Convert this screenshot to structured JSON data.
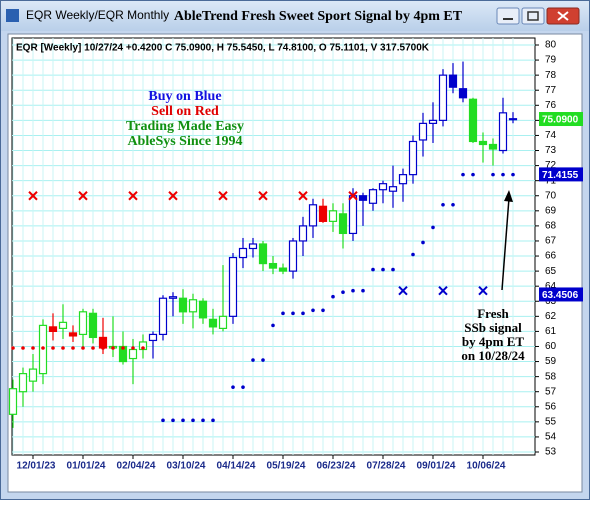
{
  "window_title": "EQR Weekly/EQR Monthly",
  "chart_data": {
    "type": "candlestick",
    "title": "AbleTrend Fresh Sweet Sport Signal by 4pm ET",
    "info": "EQR [Weekly] 10/27/24 +0.4200 C 75.0900, H 75.5450, L 74.8100, O 75.1101, V 317.5700K",
    "annotations": [
      {
        "text": "Buy on Blue",
        "color": "#1010e0"
      },
      {
        "text": "Sell on Red",
        "color": "#e00000"
      },
      {
        "text": "Trading Made Easy",
        "color": "#109010"
      },
      {
        "text": "AbleSys Since 1994",
        "color": "#109010"
      }
    ],
    "signal_note": [
      "Fresh",
      "SSb signal",
      "by 4pm ET",
      "on 10/28/24"
    ],
    "categories": [
      null,
      null,
      "12/01/23",
      null,
      null,
      null,
      null,
      "01/01/24",
      null,
      null,
      null,
      null,
      "02/04/24",
      null,
      null,
      null,
      null,
      "03/10/24",
      null,
      null,
      null,
      null,
      "04/14/24",
      null,
      null,
      null,
      null,
      "05/19/24",
      null,
      null,
      null,
      null,
      "06/23/24",
      null,
      null,
      null,
      null,
      "07/28/24",
      null,
      null,
      null,
      null,
      "09/01/24",
      null,
      null,
      null,
      null,
      "10/06/24",
      null,
      null,
      null
    ],
    "open": [
      55.5,
      57.0,
      57.7,
      58.2,
      61.3,
      61.2,
      60.9,
      60.8,
      62.2,
      60.6,
      59.9,
      60.0,
      59.2,
      59.8,
      60.4,
      60.8,
      63.2,
      63.2,
      62.3,
      63.0,
      61.8,
      61.2,
      62.0,
      65.9,
      66.5,
      66.8,
      65.5,
      65.2,
      65.0,
      67.0,
      68.0,
      69.3,
      68.3,
      68.8,
      67.5,
      70.0,
      69.5,
      70.4,
      70.3,
      70.8,
      71.4,
      73.7,
      74.8,
      75.0,
      78.0,
      77.1,
      76.4,
      73.6,
      73.4,
      73.0,
      75.1101
    ],
    "high": [
      57.8,
      58.6,
      59.5,
      61.8,
      62.2,
      62.8,
      61.4,
      62.5,
      62.5,
      61.9,
      62.0,
      61.0,
      60.5,
      60.8,
      61.0,
      63.4,
      63.6,
      63.8,
      63.5,
      63.2,
      62.5,
      65.4,
      66.2,
      67.2,
      67.2,
      67.0,
      66.0,
      65.5,
      67.2,
      68.6,
      69.8,
      69.8,
      69.5,
      69.5,
      70.5,
      70.2,
      70.5,
      71.0,
      72.0,
      71.8,
      74.0,
      75.5,
      76.2,
      78.4,
      78.8,
      78.9,
      76.5,
      74.2,
      73.8,
      76.5,
      75.545
    ],
    "low": [
      54.6,
      56.0,
      57.0,
      57.5,
      60.4,
      60.5,
      60.3,
      60.0,
      60.2,
      59.5,
      59.3,
      58.8,
      57.5,
      59.2,
      59.2,
      60.4,
      62.0,
      61.5,
      61.2,
      61.5,
      60.8,
      61.0,
      61.5,
      65.2,
      65.9,
      65.0,
      64.8,
      64.8,
      64.5,
      66.0,
      67.2,
      68.2,
      67.6,
      66.5,
      67.0,
      68.0,
      69.0,
      69.5,
      69.2,
      69.6,
      70.8,
      72.6,
      73.5,
      74.6,
      76.8,
      76.2,
      73.5,
      72.2,
      72.0,
      72.8,
      74.81
    ],
    "close": [
      57.2,
      58.2,
      58.5,
      61.4,
      61.0,
      61.6,
      60.7,
      62.3,
      60.6,
      59.9,
      60.0,
      59.0,
      59.8,
      60.3,
      60.8,
      63.2,
      63.3,
      62.3,
      63.1,
      61.9,
      61.3,
      62.0,
      65.9,
      66.5,
      66.8,
      65.5,
      65.2,
      65.0,
      67.0,
      68.0,
      69.4,
      68.3,
      69.0,
      67.5,
      70.0,
      69.7,
      70.4,
      70.8,
      70.6,
      71.4,
      73.6,
      74.8,
      75.0,
      78.0,
      77.2,
      76.5,
      73.6,
      73.4,
      73.1,
      75.5,
      75.09
    ],
    "bar_colors": [
      "#22dd22",
      "#22dd22",
      "#22dd22",
      "#22dd22",
      "#ee0000",
      "#22dd22",
      "#ee0000",
      "#22dd22",
      "#22dd22",
      "#ee0000",
      "#22dd22",
      "#22dd22",
      "#22dd22",
      "#22dd22",
      "#0000cc",
      "#0000cc",
      "#0000cc",
      "#22dd22",
      "#22dd22",
      "#22dd22",
      "#22dd22",
      "#22dd22",
      "#0000cc",
      "#0000cc",
      "#0000cc",
      "#22dd22",
      "#22dd22",
      "#22dd22",
      "#0000cc",
      "#0000cc",
      "#0000cc",
      "#ee0000",
      "#22dd22",
      "#22dd22",
      "#0000cc",
      "#0000cc",
      "#0000cc",
      "#0000cc",
      "#0000cc",
      "#0000cc",
      "#0000cc",
      "#0000cc",
      "#0000cc",
      "#0000cc",
      "#0000cc",
      "#0000cc",
      "#22dd22",
      "#22dd22",
      "#22dd22",
      "#0000cc",
      "#0000cc"
    ],
    "stops": [
      {
        "color": "#ee0000",
        "values": [
          59.9,
          59.9,
          59.9,
          59.9,
          59.9,
          59.9,
          59.9,
          59.9,
          59.9,
          59.9,
          59.9,
          59.9,
          59.9,
          59.9,
          null,
          null,
          null,
          null,
          null,
          null,
          null,
          null,
          null,
          null,
          null,
          null,
          null,
          null,
          null,
          null,
          null,
          null,
          null,
          null,
          null,
          null,
          null,
          null,
          null,
          null,
          null,
          null,
          null,
          null,
          null,
          null,
          null,
          null,
          null,
          null,
          null
        ]
      },
      {
        "color": "#0000cc",
        "values": [
          null,
          null,
          null,
          null,
          null,
          null,
          null,
          null,
          null,
          null,
          null,
          null,
          null,
          null,
          null,
          55.1,
          55.1,
          55.1,
          55.1,
          55.1,
          55.1,
          null,
          57.3,
          57.3,
          59.1,
          59.1,
          61.4,
          62.2,
          62.2,
          62.2,
          62.4,
          62.4,
          63.3,
          63.6,
          63.7,
          63.7,
          65.1,
          65.1,
          65.1,
          null,
          66.1,
          66.9,
          67.9,
          69.4,
          69.4,
          71.4,
          71.4,
          null,
          71.4,
          71.4,
          71.4
        ]
      }
    ],
    "signals": [
      {
        "color": "#ee0000",
        "values": [
          null,
          null,
          70,
          null,
          null,
          null,
          null,
          70,
          null,
          null,
          null,
          null,
          70,
          null,
          null,
          null,
          70,
          null,
          null,
          null,
          null,
          70,
          null,
          null,
          null,
          70,
          null,
          null,
          null,
          70,
          null,
          null,
          null,
          null,
          70,
          null,
          null,
          null,
          null,
          null,
          null,
          null,
          null,
          null,
          null,
          null,
          null,
          null,
          null,
          null,
          null
        ]
      },
      {
        "color": "#0000cc",
        "values": [
          null,
          null,
          null,
          null,
          null,
          null,
          null,
          null,
          null,
          null,
          null,
          null,
          null,
          null,
          null,
          null,
          null,
          null,
          null,
          null,
          null,
          null,
          null,
          null,
          null,
          null,
          null,
          null,
          null,
          null,
          null,
          null,
          null,
          null,
          null,
          null,
          null,
          null,
          null,
          63.7,
          null,
          null,
          null,
          63.7,
          null,
          null,
          null,
          63.7,
          null,
          null,
          null
        ]
      }
    ],
    "price_tags": [
      {
        "value": 75.09,
        "label": "75.0900",
        "color": "#22dd22"
      },
      {
        "value": 71.4155,
        "label": "71.4155",
        "color": "#0000cc"
      },
      {
        "value": 63.4506,
        "label": "63.4506",
        "color": "#0000cc"
      }
    ],
    "ylim": [
      53,
      80
    ],
    "yticks": [
      53,
      54,
      55,
      56,
      57,
      58,
      59,
      60,
      61,
      62,
      63,
      64,
      65,
      66,
      67,
      68,
      69,
      70,
      71,
      72,
      73,
      74,
      75,
      76,
      77,
      78,
      79,
      80
    ],
    "grid": true
  }
}
